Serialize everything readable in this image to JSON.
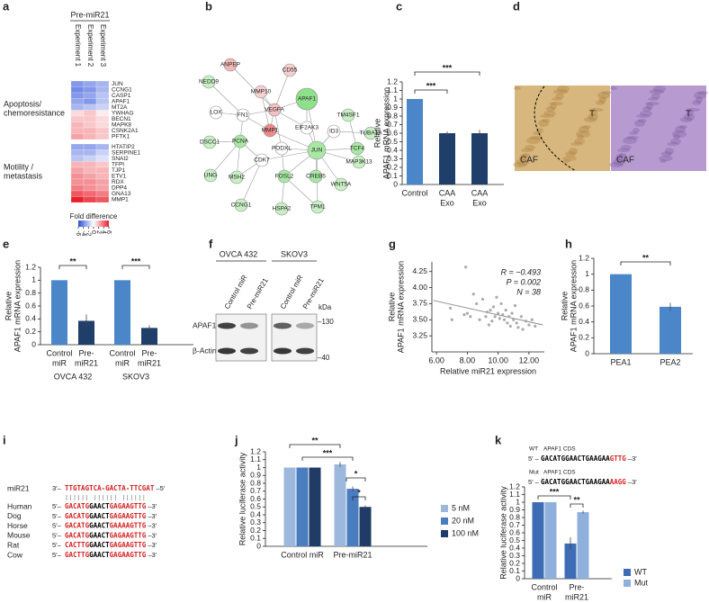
{
  "panel_labels": [
    "a",
    "b",
    "c",
    "d",
    "e",
    "f",
    "g",
    "h",
    "i",
    "j",
    "k"
  ],
  "heatmap": {
    "header": "Pre-miR21",
    "columns": [
      "Experiment 1",
      "Experiment 2",
      "Experiment 3"
    ],
    "groups": [
      {
        "label": [
          "Apoptosis/",
          "chemoresistance"
        ],
        "genes": [
          "JUN",
          "CCNG1",
          "CASP1",
          "APAF1",
          "MT2A",
          "YWHAG",
          "BECN1",
          "MAPK8",
          "CSNK2A1",
          "PFTK1"
        ],
        "values": [
          [
            -3.5,
            -3,
            -2.5
          ],
          [
            -4,
            -3.5,
            -2.5
          ],
          [
            -3.5,
            -3,
            -2
          ],
          [
            -3,
            -3.5,
            -2
          ],
          [
            -2.5,
            -2,
            -1.5
          ],
          [
            1,
            1.5,
            0.5
          ],
          [
            1.5,
            1.5,
            1
          ],
          [
            2,
            1.5,
            1
          ],
          [
            2,
            2,
            1.5
          ],
          [
            2.5,
            2,
            1.5
          ]
        ]
      },
      {
        "label": [
          "Motility /",
          "metastasis"
        ],
        "genes": [
          "HTATIP2",
          "SERPINE1",
          "SNAI2",
          "TFPI",
          "TJP1",
          "ETV1",
          "RDX",
          "DPP4",
          "GNA13",
          "MMP1"
        ],
        "values": [
          [
            -3,
            -3,
            -2.5
          ],
          [
            -2.5,
            -2.5,
            -1.5
          ],
          [
            -2,
            -1.5,
            -1
          ],
          [
            2,
            2,
            1.5
          ],
          [
            2.5,
            2,
            2
          ],
          [
            3,
            2.5,
            2
          ],
          [
            3,
            3,
            2.5
          ],
          [
            3.5,
            3,
            2.5
          ],
          [
            4.5,
            4,
            3.5
          ],
          [
            6,
            5,
            4.5
          ]
        ]
      }
    ],
    "colorbar": {
      "title": "Fold difference",
      "ticks": [
        -6,
        -4,
        -2,
        0,
        2,
        4,
        6
      ],
      "colors": [
        "#2b4fd8",
        "#ffffff",
        "#e8202a"
      ]
    }
  },
  "network": {
    "nodes": [
      {
        "label": "ANPEP",
        "color": "#f2b8b8"
      },
      {
        "label": "CD55",
        "color": "#f6d0d0"
      },
      {
        "label": "NEDD9",
        "color": "#c8f0c5"
      },
      {
        "label": "MMP10",
        "color": "#f6d0d0"
      },
      {
        "label": "APAF1",
        "color": "#8fe08a"
      },
      {
        "label": "LOX",
        "color": "#ffffff"
      },
      {
        "label": "FN1",
        "color": "#ffffff"
      },
      {
        "label": "VEGFA",
        "color": "#f3c0c0"
      },
      {
        "label": "TM4SF1",
        "color": "#c8f0c5"
      },
      {
        "label": "MMP1",
        "color": "#f08a8a"
      },
      {
        "label": "EIF2AK3",
        "color": "#ffffff"
      },
      {
        "label": "ID3",
        "color": "#ffffff"
      },
      {
        "label": "TUBA1A",
        "color": "#c8f0c5"
      },
      {
        "label": "DSCC1",
        "color": "#c8f0c5"
      },
      {
        "label": "PCNA",
        "color": "#a8e8a4"
      },
      {
        "label": "PODXL",
        "color": "#ffffff"
      },
      {
        "label": "TCF4",
        "color": "#a8e8a4"
      },
      {
        "label": "CDK7",
        "color": "#ffffff"
      },
      {
        "label": "JUN",
        "color": "#a8e8a4"
      },
      {
        "label": "UNG",
        "color": "#c8f0c5"
      },
      {
        "label": "MSH2",
        "color": "#c8f0c5"
      },
      {
        "label": "FOSL2",
        "color": "#a8e8a4"
      },
      {
        "label": "CREB5",
        "color": "#a8e8a4"
      },
      {
        "label": "MAP3K13",
        "color": "#c8f0c5"
      },
      {
        "label": "WNT5A",
        "color": "#c8f0c5"
      },
      {
        "label": "CCNG1",
        "color": "#c8f0c5"
      },
      {
        "label": "HSPA2",
        "color": "#c8f0c5"
      },
      {
        "label": "TPM1",
        "color": "#c8f0c5"
      }
    ]
  },
  "histology": {
    "images": [
      {
        "labels": [
          "T",
          "CAF"
        ]
      },
      {
        "labels": [
          "T",
          "CAF"
        ]
      }
    ]
  },
  "western": {
    "groups": [
      "OVCA 432",
      "SKOV3"
    ],
    "lanes": [
      "Control miR",
      "Pre-miR21",
      "Control miR",
      "Pre-miR21"
    ],
    "unit": "kDa",
    "rows": [
      "APAF1",
      "β-Actin"
    ],
    "markers": [
      "–130",
      "–40"
    ]
  },
  "alignment": {
    "rows": [
      {
        "name": "miR21",
        "prefix": "3′–",
        "segments": [
          {
            "text": "TTGTAGTCA-",
            "color": "#d42020"
          },
          {
            "text": "GACTA-",
            "color": "#d42020"
          },
          {
            "text": "TTCGAT",
            "color": "#d42020"
          }
        ],
        "suffix": "–5′"
      },
      {
        "name": "Human",
        "prefix": "5′–",
        "segments": [
          {
            "text": "GACATG",
            "color": "#d42020"
          },
          {
            "text": "GAACT",
            "color": "#000000"
          },
          {
            "text": "GAGAAGTTG",
            "color": "#d42020"
          }
        ],
        "suffix": "–3′"
      },
      {
        "name": "Dog",
        "prefix": "5′–",
        "segments": [
          {
            "text": "GACATG",
            "color": "#d42020"
          },
          {
            "text": "GAACT",
            "color": "#000000"
          },
          {
            "text": "GAGAAGTTG",
            "color": "#d42020"
          }
        ],
        "suffix": "–3′"
      },
      {
        "name": "Horse",
        "prefix": "5′–",
        "segments": [
          {
            "text": "GACATG",
            "color": "#d42020"
          },
          {
            "text": "GAACT",
            "color": "#000000"
          },
          {
            "text": "GAAAAGTTG",
            "color": "#d42020"
          }
        ],
        "suffix": "–3′"
      },
      {
        "name": "Mouse",
        "prefix": "5′–",
        "segments": [
          {
            "text": "GACATG",
            "color": "#d42020"
          },
          {
            "text": "GAACT",
            "color": "#000000"
          },
          {
            "text": "GAGAAGTTG",
            "color": "#d42020"
          }
        ],
        "suffix": "–3′"
      },
      {
        "name": "Rat",
        "prefix": "5′–",
        "segments": [
          {
            "text": "CACTTG",
            "color": "#d42020"
          },
          {
            "text": "GAACT",
            "color": "#000000"
          },
          {
            "text": "GAGAAGTTG",
            "color": "#d42020"
          }
        ],
        "suffix": "–3′"
      },
      {
        "name": "Cow",
        "prefix": "5′–",
        "segments": [
          {
            "text": "GACTTG",
            "color": "#d42020"
          },
          {
            "text": "GAACT",
            "color": "#000000"
          },
          {
            "text": "GAGAAGTTG",
            "color": "#d42020"
          }
        ],
        "suffix": "–3′"
      }
    ]
  },
  "constructs": [
    {
      "name": "WT",
      "gene": "APAF1 CDS",
      "prefix": "5′ –",
      "segments": [
        {
          "text": "GACATGGAACTGAAGAA",
          "color": "#000000"
        },
        {
          "text": "GTTG",
          "color": "#d42020"
        }
      ],
      "suffix": "–3′"
    },
    {
      "name": "Mut",
      "gene": "APAF1 CDS",
      "prefix": "5′ –",
      "segments": [
        {
          "text": "GACATGGAACTGAAGAA",
          "color": "#000000"
        },
        {
          "text": "AAGG",
          "color": "#d42020"
        }
      ],
      "suffix": "–3′"
    }
  ],
  "chart_data": [
    {
      "type": "bar",
      "ylabel": [
        "Relative",
        "APAF1 mRNA expression"
      ],
      "categories": [
        [
          "Control"
        ],
        [
          "CAA",
          "Exo"
        ],
        [
          "CAA",
          "Exo"
        ]
      ],
      "values": [
        1,
        0.6,
        0.6
      ],
      "errors": [
        0,
        0.02,
        0.04
      ],
      "colors": [
        "#4a86c8",
        "#1f3f6a",
        "#1f3f6a"
      ],
      "ylim": [
        0,
        1.2
      ],
      "yticks": [
        0,
        0.1,
        0.2,
        0.3,
        0.4,
        0.5,
        0.6,
        0.7,
        0.8,
        0.9,
        1,
        1.1,
        1.2
      ],
      "significance": [
        "***",
        "***"
      ]
    },
    {
      "type": "bar",
      "ylabel": [
        "Relative",
        "APAF1 mRNA expression"
      ],
      "categories": [
        [
          "Control",
          "miR"
        ],
        [
          "Pre-",
          "miR21"
        ],
        [
          "Control",
          "miR"
        ],
        [
          "Pre-",
          "miR21"
        ]
      ],
      "groups": [
        "OVCA 432",
        "SKOV3"
      ],
      "values": [
        1,
        0.37,
        1,
        0.26
      ],
      "errors": [
        0,
        0.1,
        0,
        0.04
      ],
      "colors": [
        "#4a86c8",
        "#1f3f6a",
        "#4a86c8",
        "#1f3f6a"
      ],
      "ylim": [
        0,
        1.2
      ],
      "yticks": [
        0,
        0.2,
        0.4,
        0.6,
        0.8,
        1,
        1.2
      ],
      "significance": [
        "**",
        "***"
      ]
    },
    {
      "type": "scatter",
      "xlabel": "Relative miR21 expression",
      "ylabel": [
        "Relative",
        "APAF1 mRNA expression"
      ],
      "x": [
        7.9,
        6.9,
        7.0,
        7.8,
        8.0,
        8.2,
        8.6,
        8.8,
        9.0,
        9.2,
        9.3,
        9.5,
        9.6,
        9.7,
        9.8,
        9.9,
        10.0,
        10.1,
        10.2,
        10.3,
        10.4,
        10.5,
        10.6,
        10.7,
        10.8,
        10.9,
        11.0,
        11.1,
        11.2,
        11.3,
        11.5,
        11.6,
        11.8,
        12.0,
        12.2,
        12.4,
        8.4,
        9.4
      ],
      "y": [
        4.32,
        3.68,
        3.5,
        3.58,
        3.6,
        3.55,
        3.75,
        3.5,
        3.82,
        3.55,
        3.62,
        3.65,
        3.48,
        3.7,
        3.55,
        3.85,
        3.6,
        3.52,
        3.75,
        3.58,
        3.5,
        3.65,
        3.45,
        3.55,
        3.4,
        3.6,
        3.5,
        3.72,
        3.45,
        3.38,
        3.55,
        3.35,
        3.48,
        3.42,
        3.5,
        3.4,
        3.9,
        3.42
      ],
      "color": "#aaaaaa",
      "trendline": {
        "x": [
          5.8,
          12.9
        ],
        "y": [
          3.8,
          3.42
        ]
      },
      "xlim": [
        5.7,
        13
      ],
      "ylim": [
        3.0,
        4.4
      ],
      "xticks": [
        {
          "value": 6,
          "label": "6.00"
        },
        {
          "value": 8,
          "label": "8.00"
        },
        {
          "value": 10,
          "label": "10.00"
        },
        {
          "value": 12,
          "label": "12.00"
        }
      ],
      "yticks": [
        3.25,
        {
          "value": 3.5,
          "label": "3.50"
        },
        3.75,
        {
          "value": 4,
          "label": "4.00"
        },
        4.25
      ],
      "annotations": [
        "R = −0.493",
        "P = 0.002",
        "N = 38"
      ]
    },
    {
      "type": "bar",
      "ylabel": [
        "Relative",
        "APAF1 mRNA expression"
      ],
      "categories": [
        [
          "PEA1"
        ],
        [
          "PEA2"
        ]
      ],
      "values": [
        1,
        0.59
      ],
      "errors": [
        0,
        0.05
      ],
      "colors": [
        "#4a86c8",
        "#4a86c8"
      ],
      "ylim": [
        0,
        1.2
      ],
      "yticks": [
        0,
        0.2,
        0.4,
        0.6,
        0.8,
        1,
        1.2
      ],
      "significance": [
        "**"
      ]
    },
    {
      "type": "grouped",
      "ylabel": [
        "Relative luciferase activity"
      ],
      "categories": [
        [
          "Control miR"
        ],
        [
          "Pre-miR21"
        ]
      ],
      "series": [
        {
          "name": "5 nM",
          "color": "#9db8dd",
          "values": [
            1,
            1.04
          ],
          "errors": [
            0,
            0.03
          ]
        },
        {
          "name": "20 nM",
          "color": "#4a7cc0",
          "values": [
            1,
            0.73
          ],
          "errors": [
            0,
            0.03
          ]
        },
        {
          "name": "100 nM",
          "color": "#1f3b66",
          "values": [
            1,
            0.5
          ],
          "errors": [
            0,
            0.02
          ]
        }
      ],
      "ylim": [
        0,
        1.2
      ],
      "yticks": [
        0,
        0.1,
        0.2,
        0.3,
        0.4,
        0.5,
        0.6,
        0.7,
        0.8,
        0.9,
        1,
        1.1,
        1.2
      ],
      "significance": [
        "**",
        "***",
        "*",
        "*"
      ]
    },
    {
      "type": "grouped",
      "ylabel": [
        "Relative luciferase activity"
      ],
      "categories": [
        [
          "Control",
          "miR"
        ],
        [
          "Pre-",
          "miR21"
        ]
      ],
      "series": [
        {
          "name": "WT",
          "color": "#3e6db5",
          "values": [
            1,
            0.46
          ],
          "errors": [
            0,
            0.08
          ]
        },
        {
          "name": "Mut",
          "color": "#8fb0dc",
          "values": [
            1,
            0.87
          ],
          "errors": [
            0,
            0.02
          ]
        }
      ],
      "ylim": [
        0,
        1.2
      ],
      "yticks": [
        0,
        0.1,
        0.2,
        0.3,
        0.4,
        0.5,
        0.6,
        0.7,
        0.8,
        0.9,
        1,
        1.1,
        1.2
      ],
      "significance": [
        "***",
        "**"
      ]
    }
  ]
}
